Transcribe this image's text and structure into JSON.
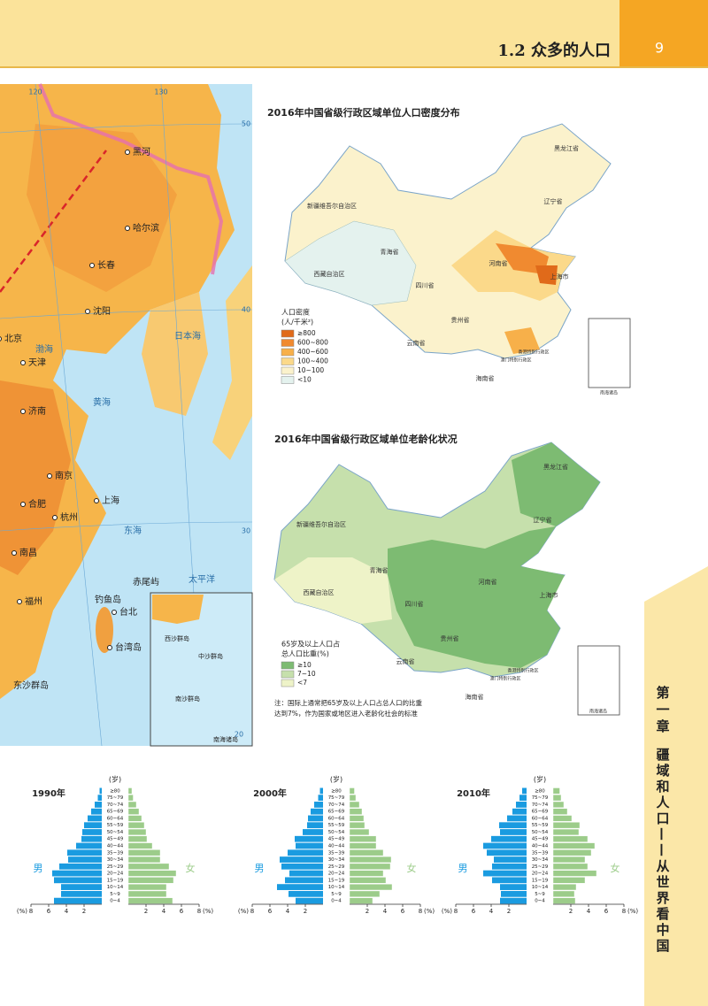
{
  "header": {
    "section": "1.2  众多的人口",
    "page": "9"
  },
  "side_tab": {
    "chapter": "第一章",
    "title": "疆域和人口——从世界看中国"
  },
  "map1": {
    "graticule": [
      120,
      130,
      50,
      40,
      30,
      20
    ],
    "labels": [
      "黑河",
      "哈尔滨",
      "长春",
      "沈阳",
      "北京",
      "天津",
      "济南",
      "南京",
      "合肥",
      "上海",
      "杭州",
      "南昌",
      "福州",
      "台北",
      "台湾岛",
      "钓鱼岛",
      "赤尾屿",
      "东沙群岛",
      "日本海",
      "渤海",
      "黄海",
      "东海",
      "太平洋",
      "西沙群岛",
      "中沙群岛",
      "南沙群岛",
      "南海诸岛"
    ]
  },
  "map2": {
    "title": "2016年中国省级行政区域单位人口密度分布",
    "legend_title": [
      "人口密度",
      "(人/千米²)"
    ],
    "legend": [
      {
        "label": "≥800",
        "color": "#e06a1a"
      },
      {
        "label": "600~800",
        "color": "#f08a30"
      },
      {
        "label": "400~600",
        "color": "#f7b04a"
      },
      {
        "label": "100~400",
        "color": "#fbd98a"
      },
      {
        "label": "10~100",
        "color": "#fbf2cc"
      },
      {
        "label": "<10",
        "color": "#e4f2ee"
      }
    ],
    "labels": [
      "新疆维吾尔自治区",
      "西藏自治区",
      "青海省",
      "四川省",
      "云南省",
      "贵州省",
      "河南省",
      "黑龙江省",
      "辽宁省",
      "上海市",
      "海南省",
      "香港特别行政区",
      "澳门特别行政区",
      "南海诸岛"
    ]
  },
  "map3": {
    "title": "2016年中国省级行政区域单位老龄化状况",
    "legend_title": [
      "65岁及以上人口占",
      "总人口比重(%)"
    ],
    "legend": [
      {
        "label": "≥10",
        "color": "#7dbb72"
      },
      {
        "label": "7~10",
        "color": "#c6e0ac"
      },
      {
        "label": "<7",
        "color": "#eef3c8"
      }
    ],
    "labels": [
      "新疆维吾尔自治区",
      "西藏自治区",
      "青海省",
      "四川省",
      "云南省",
      "贵州省",
      "河南省",
      "黑龙江省",
      "辽宁省",
      "上海市",
      "海南省",
      "香港特别行政区",
      "澳门特别行政区",
      "南海诸岛"
    ],
    "note": [
      "注：国际上通常把65岁及以上人口占总人口的比重",
      "达到7%，作为国家或地区进入老龄化社会的标准"
    ]
  },
  "chart_data": [
    {
      "type": "pyramid",
      "title": "1990年",
      "y_unit": "(岁)",
      "x_unit": "(%)",
      "categories": [
        "0~4",
        "5~9",
        "10~14",
        "15~19",
        "20~24",
        "25~29",
        "30~34",
        "35~39",
        "40~44",
        "45~49",
        "50~54",
        "55~59",
        "60~64",
        "65~69",
        "70~74",
        "75~79",
        "≥80"
      ],
      "series": [
        {
          "name": "男",
          "color": "#1a9be0",
          "values": [
            5.4,
            4.6,
            4.6,
            5.4,
            5.6,
            4.8,
            3.8,
            3.9,
            2.9,
            2.3,
            2.2,
            2.0,
            1.6,
            1.2,
            0.8,
            0.45,
            0.25
          ]
        },
        {
          "name": "女",
          "color": "#9ccc8a",
          "values": [
            5.0,
            4.3,
            4.3,
            5.1,
            5.4,
            4.6,
            3.6,
            3.6,
            2.7,
            2.1,
            2.0,
            1.8,
            1.5,
            1.2,
            0.9,
            0.55,
            0.4
          ]
        }
      ],
      "xlim": [
        0,
        8
      ],
      "xticks": [
        2,
        4,
        6,
        8
      ]
    },
    {
      "type": "pyramid",
      "title": "2000年",
      "y_unit": "(岁)",
      "x_unit": "(%)",
      "categories": [
        "0~4",
        "5~9",
        "10~14",
        "15~19",
        "20~24",
        "25~29",
        "30~34",
        "35~39",
        "40~44",
        "45~49",
        "50~54",
        "55~59",
        "60~64",
        "65~69",
        "70~74",
        "75~79",
        "≥80"
      ],
      "series": [
        {
          "name": "男",
          "color": "#1a9be0",
          "values": [
            3.1,
            3.9,
            5.2,
            4.3,
            3.8,
            4.7,
            4.9,
            4.0,
            3.1,
            3.2,
            2.3,
            1.8,
            1.7,
            1.4,
            1.0,
            0.55,
            0.35
          ]
        },
        {
          "name": "女",
          "color": "#9ccc8a",
          "values": [
            2.6,
            3.4,
            4.8,
            4.1,
            3.8,
            4.6,
            4.7,
            3.8,
            3.0,
            3.0,
            2.2,
            1.7,
            1.6,
            1.4,
            1.1,
            0.7,
            0.55
          ]
        }
      ],
      "xlim": [
        0,
        8
      ],
      "xticks": [
        2,
        4,
        6,
        8
      ]
    },
    {
      "type": "pyramid",
      "title": "2010年",
      "y_unit": "(岁)",
      "x_unit": "(%)",
      "categories": [
        "0~4",
        "5~9",
        "10~14",
        "15~19",
        "20~24",
        "25~29",
        "30~34",
        "35~39",
        "40~44",
        "45~49",
        "50~54",
        "55~59",
        "60~64",
        "65~69",
        "70~74",
        "75~79",
        "≥80"
      ],
      "series": [
        {
          "name": "男",
          "color": "#1a9be0",
          "values": [
            3.0,
            2.9,
            3.0,
            3.9,
            4.9,
            3.9,
            3.7,
            4.5,
            4.9,
            4.0,
            3.0,
            3.1,
            2.2,
            1.6,
            1.2,
            0.8,
            0.5
          ]
        },
        {
          "name": "女",
          "color": "#9ccc8a",
          "values": [
            2.5,
            2.4,
            2.6,
            3.6,
            4.9,
            3.9,
            3.6,
            4.3,
            4.7,
            3.9,
            2.9,
            3.0,
            2.1,
            1.6,
            1.2,
            0.9,
            0.75
          ]
        }
      ],
      "xlim": [
        0,
        8
      ],
      "xticks": [
        2,
        4,
        6,
        8
      ]
    }
  ]
}
